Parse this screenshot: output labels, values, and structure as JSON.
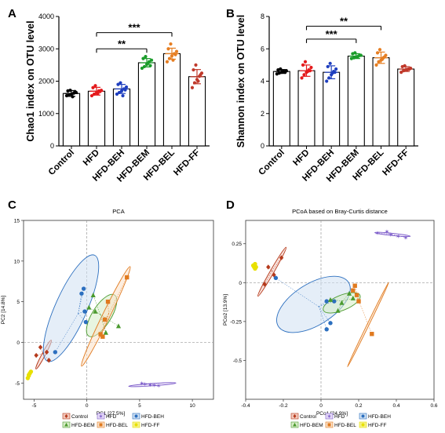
{
  "chart_data": [
    {
      "panel": "A",
      "type": "bar",
      "ylabel": "Chao1 index on OTU level",
      "ylim": [
        0,
        4000
      ],
      "yticks": [
        "0",
        "1000",
        "2000",
        "3000",
        "4000"
      ],
      "categories": [
        "Control",
        "HFD",
        "HFD-BEH",
        "HFD-BEM",
        "HFD-BEL",
        "HFD-FF"
      ],
      "values": [
        1620,
        1690,
        1760,
        2570,
        2850,
        2140
      ],
      "errors": [
        90,
        120,
        140,
        130,
        170,
        220
      ],
      "colors": [
        "#000000",
        "#e41a1c",
        "#1f3fbf",
        "#1a9c2a",
        "#e67e22",
        "#c0392b"
      ],
      "points": [
        [
          1550,
          1580,
          1600,
          1630,
          1650,
          1700,
          1720,
          1520,
          1680
        ],
        [
          1550,
          1600,
          1640,
          1700,
          1720,
          1800,
          1860,
          1620,
          1680
        ],
        [
          1600,
          1650,
          1700,
          1760,
          1820,
          1900,
          1950,
          1550,
          1730
        ],
        [
          2400,
          2450,
          2520,
          2600,
          2650,
          2700,
          2760,
          2550,
          2480
        ],
        [
          2600,
          2700,
          2780,
          2850,
          2920,
          3000,
          3150,
          2650,
          2820
        ],
        [
          1800,
          1950,
          2050,
          2150,
          2250,
          2350,
          2500,
          2000,
          2200
        ]
      ],
      "significance": [
        {
          "from": "HFD",
          "to": "HFD-BEM",
          "label": "**",
          "level": 3000
        },
        {
          "from": "HFD",
          "to": "HFD-BEL",
          "label": "***",
          "level": 3500
        }
      ]
    },
    {
      "panel": "B",
      "type": "bar",
      "ylabel": "Shannon index on OTU level",
      "ylim": [
        0,
        8
      ],
      "yticks": [
        "0",
        "2",
        "4",
        "6",
        "8"
      ],
      "categories": [
        "Control",
        "HFD",
        "HFD-BEH",
        "HFD-BEM",
        "HFD-BEL",
        "HFD-FF"
      ],
      "values": [
        4.6,
        4.65,
        4.55,
        5.55,
        5.45,
        4.75
      ],
      "errors": [
        0.12,
        0.35,
        0.4,
        0.15,
        0.35,
        0.15
      ],
      "colors": [
        "#000000",
        "#e41a1c",
        "#1f3fbf",
        "#1a9c2a",
        "#e67e22",
        "#c0392b"
      ],
      "points": [
        [
          4.45,
          4.5,
          4.55,
          4.6,
          4.65,
          4.7,
          4.75,
          4.6,
          4.55
        ],
        [
          4.2,
          4.4,
          4.55,
          4.7,
          4.85,
          5.0,
          5.2,
          4.6,
          4.65
        ],
        [
          4.0,
          4.2,
          4.4,
          4.6,
          4.75,
          4.9,
          5.1,
          4.5,
          4.55
        ],
        [
          5.4,
          5.45,
          5.5,
          5.55,
          5.6,
          5.7,
          5.75,
          5.5,
          5.6
        ],
        [
          5.0,
          5.2,
          5.3,
          5.45,
          5.6,
          5.75,
          5.95,
          5.35,
          5.5
        ],
        [
          4.55,
          4.65,
          4.7,
          4.75,
          4.8,
          4.9,
          4.95,
          4.7,
          4.75
        ]
      ],
      "significance": [
        {
          "from": "HFD",
          "to": "HFD-BEM",
          "label": "***",
          "level": 6.6
        },
        {
          "from": "HFD",
          "to": "HFD-BEL",
          "label": "**",
          "level": 7.4
        }
      ]
    },
    {
      "panel": "C",
      "type": "scatter",
      "title": "PCA",
      "xlabel": "PC1 [27.5%]",
      "ylabel": "PC2 [14.8%]",
      "xlim": [
        -6,
        12
      ],
      "ylim": [
        -7,
        15
      ],
      "xticks": [
        -5,
        0,
        5,
        10
      ],
      "yticks": [
        -5,
        0,
        5,
        10,
        15
      ],
      "refx": 0,
      "refy": 0,
      "series": [
        {
          "name": "Control",
          "color": "#b5391b",
          "fill": "#f2c9bd",
          "marker": "diamond",
          "points": [
            [
              -4.4,
              -0.6
            ],
            [
              -3.6,
              -2.2
            ],
            [
              -4.8,
              -1.6
            ],
            [
              -3.8,
              -1.2
            ]
          ],
          "ellipse": {
            "cx": -4.1,
            "cy": -1.5,
            "rx": 3.1,
            "ry": 0.32,
            "angle": -62
          }
        },
        {
          "name": "HFD",
          "color": "#7b5bc9",
          "fill": "#e8dcf8",
          "marker": "star",
          "points": [],
          "ellipse": null
        },
        {
          "name": "HFD-BEH",
          "color": "#2c6fbf",
          "fill": "#cfe0f2",
          "marker": "circle",
          "points": [
            [
              -0.3,
              6.6
            ],
            [
              -0.2,
              3.8
            ],
            [
              -0.1,
              2.5
            ],
            [
              -3.0,
              -1.2
            ],
            [
              -0.5,
              6.0
            ]
          ],
          "ellipse": {
            "cx": -1.5,
            "cy": 4.2,
            "rx": 11,
            "ry": 3.0,
            "angle": -66
          }
        },
        {
          "name": "HFD-BEM",
          "color": "#4a9a2e",
          "fill": "#d6ecc6",
          "marker": "triangle",
          "points": [
            [
              0.6,
              5.8
            ],
            [
              0.2,
              4.3
            ],
            [
              3.0,
              2.0
            ],
            [
              1.8,
              1.2
            ],
            [
              0.8,
              3.8
            ]
          ],
          "ellipse": {
            "cx": 1.4,
            "cy": 3.3,
            "rx": 4.6,
            "ry": 1.8,
            "angle": -58
          }
        },
        {
          "name": "HFD-BEL",
          "color": "#e07a1f",
          "fill": "#fbe0c7",
          "marker": "square",
          "points": [
            [
              3.8,
              8.0
            ],
            [
              2.0,
              5.0
            ],
            [
              1.7,
              2.8
            ],
            [
              1.5,
              0.7
            ],
            [
              1.3,
              1.0
            ]
          ],
          "ellipse": {
            "cx": 1.8,
            "cy": 3.2,
            "rx": 10.5,
            "ry": 0.7,
            "angle": -64
          }
        },
        {
          "name": "HFD-FF",
          "color": "#e8e000",
          "fill": "#f5f28a",
          "marker": "circle",
          "points": [
            [
              -5.4,
              -3.8
            ],
            [
              -5.5,
              -4.1
            ],
            [
              -5.6,
              -4.4
            ],
            [
              -5.3,
              -3.6
            ],
            [
              -5.5,
              -4.0
            ]
          ],
          "ellipse": null
        }
      ],
      "extra_ellipse": {
        "series": "HFD",
        "cx": 6.2,
        "cy": -5.2,
        "rx": 4.5,
        "ry": 0.22,
        "angle": -4,
        "points": [
          [
            5.5,
            -5.1
          ],
          [
            6.0,
            -5.2
          ],
          [
            6.8,
            -5.3
          ],
          [
            5.2,
            -5.0
          ],
          [
            6.4,
            -5.25
          ]
        ]
      }
    },
    {
      "panel": "D",
      "type": "scatter",
      "title": "PCoA based on Bray-Curtis distance",
      "xlabel": "PCo1 [24.9%]",
      "ylabel": "PCo2 [13.9%]",
      "xlim": [
        -0.4,
        0.6
      ],
      "ylim": [
        -0.75,
        0.4
      ],
      "xticks": [
        -0.4,
        -0.2,
        0.0,
        0.2,
        0.4,
        0.6
      ],
      "yticks": [
        0.25,
        0.0,
        -0.25,
        -0.5
      ],
      "refx": 0,
      "refy": 0,
      "series": [
        {
          "name": "Control",
          "color": "#b5391b",
          "fill": "#f2c9bd",
          "marker": "diamond",
          "points": [
            [
              -0.21,
              0.16
            ],
            [
              -0.25,
              0.05
            ],
            [
              -0.3,
              -0.01
            ],
            [
              -0.28,
              0.1
            ]
          ],
          "ellipse": {
            "cx": -0.26,
            "cy": 0.07,
            "rx": 0.3,
            "ry": 0.02,
            "angle": -60
          }
        },
        {
          "name": "HFD",
          "color": "#7b5bc9",
          "fill": "#e8dcf8",
          "marker": "star",
          "points": [],
          "ellipse": null
        },
        {
          "name": "HFD-BEH",
          "color": "#2c6fbf",
          "fill": "#cfe0f2",
          "marker": "circle",
          "points": [
            [
              -0.24,
              0.03
            ],
            [
              0.03,
              -0.12
            ],
            [
              0.05,
              -0.26
            ],
            [
              0.03,
              -0.3
            ],
            [
              0.07,
              -0.12
            ]
          ],
          "ellipse": {
            "cx": -0.04,
            "cy": -0.14,
            "rx": 0.44,
            "ry": 0.22,
            "angle": -32
          }
        },
        {
          "name": "HFD-BEM",
          "color": "#4a9a2e",
          "fill": "#d6ecc6",
          "marker": "triangle",
          "points": [
            [
              0.15,
              -0.07
            ],
            [
              0.05,
              -0.11
            ],
            [
              0.11,
              -0.13
            ],
            [
              0.17,
              -0.1
            ],
            [
              0.09,
              -0.18
            ]
          ],
          "ellipse": {
            "cx": 0.11,
            "cy": -0.13,
            "rx": 0.21,
            "ry": 0.08,
            "angle": -22
          }
        },
        {
          "name": "HFD-BEL",
          "color": "#e07a1f",
          "fill": "#fbe0c7",
          "marker": "square",
          "points": [
            [
              0.17,
              -0.05
            ],
            [
              0.19,
              -0.08
            ],
            [
              0.27,
              -0.33
            ],
            [
              0.2,
              -0.12
            ],
            [
              0.18,
              -0.02
            ]
          ],
          "ellipse": {
            "cx": 0.25,
            "cy": -0.27,
            "rx": 0.5,
            "ry": 0.01,
            "angle": -64
          }
        },
        {
          "name": "HFD-FF",
          "color": "#e8e000",
          "fill": "#f5f28a",
          "marker": "circle",
          "points": [
            [
              -0.35,
              0.09
            ],
            [
              -0.355,
              0.1
            ],
            [
              -0.36,
              0.11
            ],
            [
              -0.35,
              0.12
            ],
            [
              -0.345,
              0.1
            ]
          ],
          "ellipse": null
        }
      ],
      "extra_ellipse": {
        "series": "HFD",
        "cx": 0.38,
        "cy": 0.31,
        "rx": 0.19,
        "ry": 0.012,
        "angle": 6,
        "points": [
          [
            0.3,
            0.32
          ],
          [
            0.37,
            0.31
          ],
          [
            0.41,
            0.3
          ],
          [
            0.45,
            0.29
          ],
          [
            0.35,
            0.33
          ]
        ]
      }
    }
  ]
}
